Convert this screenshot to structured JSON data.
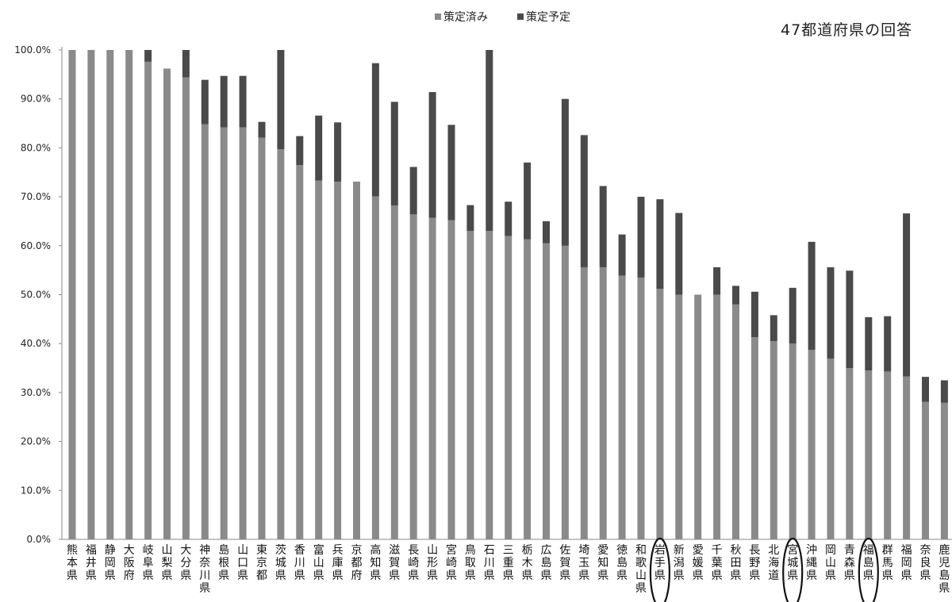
{
  "chart_data": {
    "type": "bar",
    "stacked": true,
    "title": "",
    "annotation": "47都道府県の回答",
    "legend_position": "top-center",
    "xlabel": "",
    "ylabel": "",
    "ylim": [
      0,
      1.0
    ],
    "yticks": [
      "0.0%",
      "10.0%",
      "20.0%",
      "30.0%",
      "40.0%",
      "50.0%",
      "60.0%",
      "70.0%",
      "80.0%",
      "90.0%",
      "100.0%"
    ],
    "grid": false,
    "categories": [
      "熊本県",
      "福井県",
      "静岡県",
      "大阪府",
      "岐阜県",
      "山梨県",
      "大分県",
      "神奈川県",
      "島根県",
      "山口県",
      "東京都",
      "茨城県",
      "香川県",
      "富山県",
      "兵庫県",
      "京都府",
      "高知県",
      "滋賀県",
      "長崎県",
      "山形県",
      "宮崎県",
      "鳥取県",
      "石川県",
      "三重県",
      "栃木県",
      "広島県",
      "佐賀県",
      "埼玉県",
      "愛知県",
      "徳島県",
      "和歌山県",
      "岩手県",
      "新潟県",
      "愛媛県",
      "千葉県",
      "秋田県",
      "長野県",
      "北海道",
      "宮城県",
      "沖縄県",
      "岡山県",
      "青森県",
      "福島県",
      "群馬県",
      "福岡県",
      "奈良県",
      "鹿児島県"
    ],
    "highlighted_categories": [
      "岩手県",
      "宮城県",
      "福島県"
    ],
    "series": [
      {
        "name": "策定済み",
        "color": "#8a8a8a",
        "values": [
          1.0,
          1.0,
          1.0,
          1.0,
          0.976,
          0.962,
          0.944,
          0.848,
          0.842,
          0.842,
          0.821,
          0.797,
          0.765,
          0.733,
          0.731,
          0.731,
          0.701,
          0.682,
          0.664,
          0.657,
          0.652,
          0.63,
          0.63,
          0.62,
          0.613,
          0.605,
          0.6,
          0.556,
          0.556,
          0.539,
          0.535,
          0.512,
          0.5,
          0.5,
          0.5,
          0.48,
          0.413,
          0.405,
          0.4,
          0.387,
          0.369,
          0.35,
          0.345,
          0.343,
          0.333,
          0.281,
          0.279
        ]
      },
      {
        "name": "策定予定",
        "color": "#4a4a4a",
        "values": [
          0,
          0,
          0,
          0,
          0.024,
          0,
          0.056,
          0.091,
          0.105,
          0.105,
          0.032,
          0.203,
          0.059,
          0.133,
          0.121,
          0,
          0.272,
          0.212,
          0.097,
          0.257,
          0.195,
          0.053,
          0.37,
          0.07,
          0.157,
          0.045,
          0.3,
          0.27,
          0.166,
          0.084,
          0.165,
          0.183,
          0.167,
          0,
          0.056,
          0.038,
          0.093,
          0.053,
          0.114,
          0.221,
          0.187,
          0.199,
          0.109,
          0.113,
          0.333,
          0.051,
          0.046
        ]
      }
    ]
  }
}
